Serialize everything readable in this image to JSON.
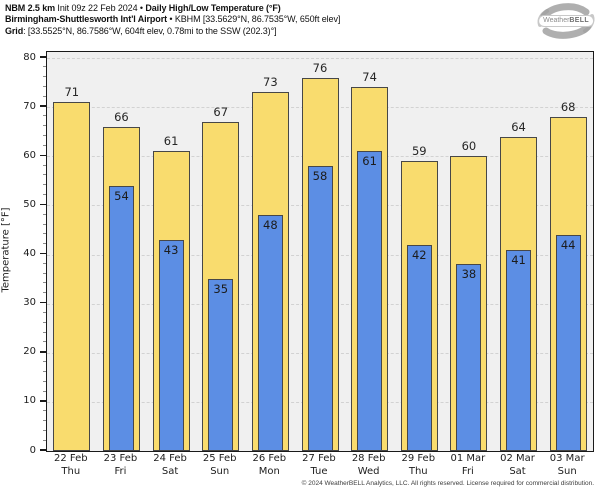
{
  "header": {
    "model": "NBM 2.5 km",
    "init": " Init 09z 22 Feb 2024 ",
    "bullet1": "• ",
    "product": "Daily High/Low Temperature (°F)",
    "station_name": "Birmingham-Shuttlesworth Int'l Airport",
    "station_meta": " • KBHM [33.5629°N, 86.7535°W, 650ft elev]",
    "grid_label": "Grid",
    "grid_meta": ": [33.5525°N, 86.7586°W, 604ft elev, 0.78mi to the SSW (202.3)°]"
  },
  "logo": {
    "brand_weather": "Weather",
    "brand_bell": "BELL"
  },
  "footer": "© 2024 WeatherBELL Analytics, LLC. All rights reserved. License required for commercial distribution.",
  "chart_data": {
    "type": "bar",
    "title": "Daily High/Low Temperature (°F)",
    "xlabel": "",
    "ylabel": "Temperature [°F]",
    "ylim": [
      0,
      81
    ],
    "yticks": [
      0,
      10,
      20,
      30,
      40,
      50,
      60,
      70,
      80
    ],
    "grid": "horizontal dashed at every 10 °F",
    "legend_position": "none",
    "categories": [
      {
        "date": "22 Feb",
        "day": "Thu"
      },
      {
        "date": "23 Feb",
        "day": "Fri"
      },
      {
        "date": "24 Feb",
        "day": "Sat"
      },
      {
        "date": "25 Feb",
        "day": "Sun"
      },
      {
        "date": "26 Feb",
        "day": "Mon"
      },
      {
        "date": "27 Feb",
        "day": "Tue"
      },
      {
        "date": "28 Feb",
        "day": "Wed"
      },
      {
        "date": "29 Feb",
        "day": "Thu"
      },
      {
        "date": "01 Mar",
        "day": "Fri"
      },
      {
        "date": "02 Mar",
        "day": "Sat"
      },
      {
        "date": "03 Mar",
        "day": "Sun"
      }
    ],
    "series": [
      {
        "name": "Daily High",
        "color": "#f9dc6e",
        "values": [
          71,
          66,
          61,
          67,
          73,
          76,
          74,
          59,
          60,
          64,
          68
        ]
      },
      {
        "name": "Daily Low",
        "color": "#5c8ee4",
        "values": [
          null,
          54,
          43,
          35,
          48,
          58,
          61,
          42,
          38,
          41,
          44
        ]
      }
    ]
  },
  "colors": {
    "high_fill": "#f9dc6e",
    "low_fill": "#5c8ee4",
    "bar_border": "#474747",
    "plot_bg": "#f0f0f0",
    "grid_line": "#d2d2d2",
    "axis": "#1a1a1a",
    "text": "#1c1c1c"
  }
}
